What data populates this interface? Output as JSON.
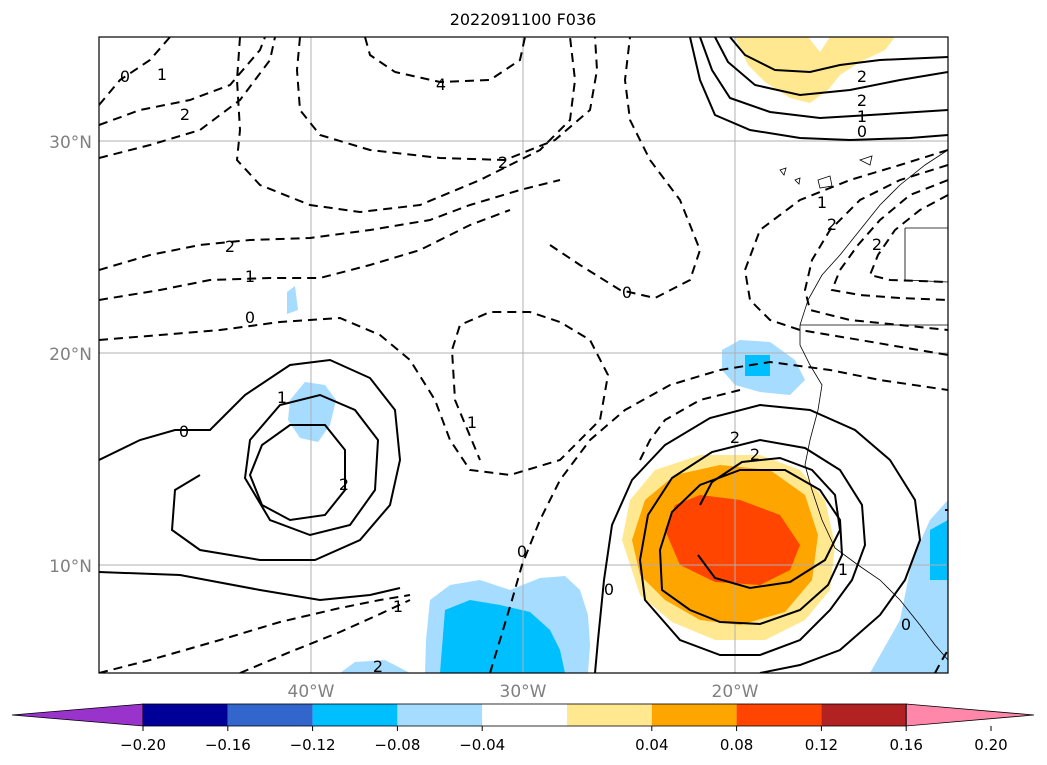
{
  "title": "2022091100 F036",
  "map": {
    "lat_labels": [
      "30°N",
      "20°N",
      "10°N"
    ],
    "lon_labels": [
      "40°W",
      "30°W",
      "20°W"
    ],
    "contour_labels": {
      "c4": "4",
      "c2": "2",
      "c1": "1",
      "c0": "0",
      "cm1": "1",
      "cm2": "2"
    }
  },
  "colorbar": {
    "ticks": [
      "−0.20",
      "−0.16",
      "−0.12",
      "−0.08",
      "−0.04",
      "0.04",
      "0.08",
      "0.12",
      "0.16",
      "0.20"
    ],
    "colors": [
      "#9933cc",
      "#000099",
      "#3366cc",
      "#00bfff",
      "#a6dcff",
      "#ffffff",
      "#ffe88f",
      "#ffa500",
      "#ff4500",
      "#b22222",
      "#ff88aa"
    ]
  }
}
